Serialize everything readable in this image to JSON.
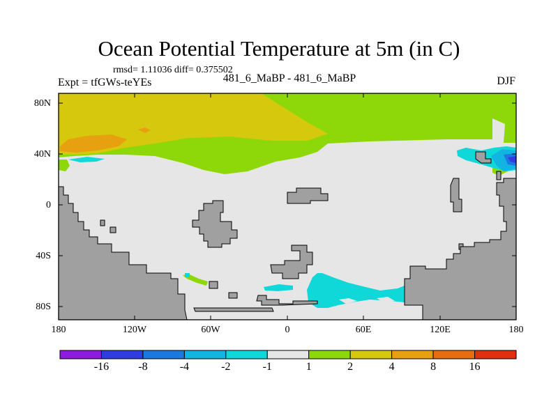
{
  "title": "Ocean Potential Temperature at 5m (in C)",
  "stats": "rmsd= 1.11036  diff= 0.375502",
  "left_label": "Expt = tfGWs-teYEs",
  "center_label": "481_6_MaBP - 481_6_MaBP",
  "right_label": "DJF",
  "lat_labels": [
    "80N",
    "40N",
    "0",
    "40S",
    "80S"
  ],
  "lon_labels": [
    "180",
    "120W",
    "60W",
    "0",
    "60E",
    "120E",
    "180"
  ],
  "colorbar": {
    "colors": [
      "#8c1cdf",
      "#2e3ce0",
      "#1a78e0",
      "#12b4e2",
      "#10d8d8",
      "#e6e6e6",
      "#8ed80a",
      "#d6c80c",
      "#e6a010",
      "#e66e10",
      "#e03010"
    ],
    "labels": [
      "-16",
      "-8",
      "-4",
      "-2",
      "-1",
      "1",
      "2",
      "4",
      "8",
      "16"
    ]
  },
  "colors": {
    "land": "#a0a0a0",
    "ocean_near_zero": "#e6e6e6",
    "warm_1_2": "#8ed80a",
    "warm_2_4": "#d6c80c",
    "warm_4_8": "#e6a010",
    "cool_1_2": "#10d8d8",
    "cool_2_4": "#12b4e2",
    "cool_4_8": "#1a78e0",
    "cool_8_16": "#2e3ce0"
  }
}
